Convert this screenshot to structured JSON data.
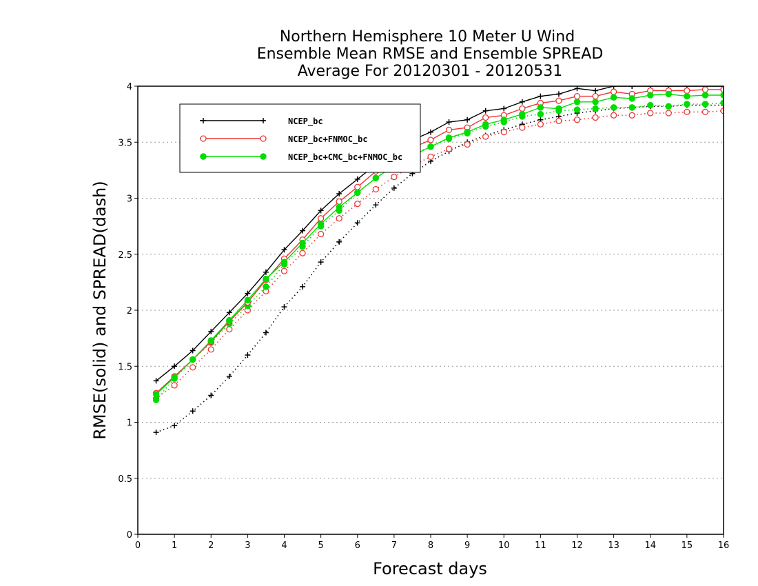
{
  "chart_data": {
    "type": "line",
    "title_lines": [
      "Northern Hemisphere 10 Meter U Wind",
      "Ensemble Mean RMSE and Ensemble SPREAD",
      "Average For 20120301 - 20120531"
    ],
    "xlabel": "Forecast days",
    "ylabel": "RMSE(solid) and SPREAD(dash)",
    "xlim": [
      0,
      16
    ],
    "ylim": [
      0,
      4
    ],
    "xticks": [
      "0",
      "1",
      "2",
      "3",
      "4",
      "5",
      "6",
      "7",
      "8",
      "9",
      "10",
      "11",
      "12",
      "13",
      "14",
      "15",
      "16"
    ],
    "yticks": [
      "0",
      "0.5",
      "1",
      "1.5",
      "2",
      "2.5",
      "3",
      "3.5",
      "4"
    ],
    "grid": "horizontal-dotted",
    "legend_position": "top-left",
    "x": [
      0.5,
      1,
      1.5,
      2,
      2.5,
      3,
      3.5,
      4,
      4.5,
      5,
      5.5,
      6,
      6.5,
      7,
      7.5,
      8,
      8.5,
      9,
      9.5,
      10,
      10.5,
      11,
      11.5,
      12,
      12.5,
      13,
      13.5,
      14,
      14.5,
      15,
      15.5,
      16
    ],
    "series": [
      {
        "name": "NCEP_bc",
        "color": "#000000",
        "marker": "plus",
        "rmse": [
          1.37,
          1.5,
          1.64,
          1.81,
          1.98,
          2.15,
          2.34,
          2.54,
          2.71,
          2.89,
          3.04,
          3.17,
          3.3,
          3.42,
          3.52,
          3.59,
          3.68,
          3.7,
          3.78,
          3.8,
          3.86,
          3.91,
          3.93,
          3.98,
          3.96,
          4.0,
          4.0,
          4.0,
          4.0,
          4.0,
          4.0,
          4.0
        ],
        "spread": [
          0.91,
          0.97,
          1.1,
          1.24,
          1.41,
          1.6,
          1.8,
          2.03,
          2.21,
          2.43,
          2.61,
          2.78,
          2.94,
          3.09,
          3.22,
          3.33,
          3.42,
          3.5,
          3.56,
          3.61,
          3.66,
          3.7,
          3.73,
          3.76,
          3.78,
          3.8,
          3.81,
          3.82,
          3.82,
          3.83,
          3.83,
          3.83
        ]
      },
      {
        "name": "NCEP_bc+FNMOC_bc",
        "color": "#ee3333",
        "marker": "open-circle",
        "rmse": [
          1.26,
          1.41,
          1.56,
          1.72,
          1.9,
          2.07,
          2.27,
          2.46,
          2.63,
          2.82,
          2.97,
          3.1,
          3.24,
          3.35,
          3.45,
          3.52,
          3.61,
          3.63,
          3.72,
          3.74,
          3.8,
          3.85,
          3.87,
          3.91,
          3.91,
          3.95,
          3.93,
          3.96,
          3.96,
          3.96,
          3.97,
          3.97
        ],
        "spread": [
          1.21,
          1.33,
          1.49,
          1.65,
          1.83,
          2.0,
          2.17,
          2.35,
          2.51,
          2.68,
          2.82,
          2.95,
          3.08,
          3.19,
          3.29,
          3.37,
          3.44,
          3.48,
          3.55,
          3.59,
          3.63,
          3.66,
          3.69,
          3.7,
          3.72,
          3.74,
          3.74,
          3.76,
          3.76,
          3.77,
          3.77,
          3.78
        ]
      },
      {
        "name": "NCEP_bc+CMC_bc+FNMOC_bc",
        "color": "#00dd00",
        "marker": "filled-circle",
        "rmse": [
          1.25,
          1.4,
          1.56,
          1.73,
          1.91,
          2.09,
          2.28,
          2.43,
          2.6,
          2.77,
          2.92,
          3.05,
          3.18,
          3.29,
          3.38,
          3.46,
          3.54,
          3.59,
          3.66,
          3.7,
          3.75,
          3.81,
          3.8,
          3.86,
          3.86,
          3.9,
          3.89,
          3.92,
          3.93,
          3.91,
          3.92,
          3.92
        ],
        "spread": [
          1.2,
          1.39,
          1.56,
          1.71,
          1.88,
          2.04,
          2.21,
          2.41,
          2.57,
          2.75,
          2.89,
          3.05,
          3.18,
          3.3,
          3.39,
          3.46,
          3.53,
          3.58,
          3.64,
          3.68,
          3.73,
          3.75,
          3.78,
          3.79,
          3.8,
          3.81,
          3.81,
          3.83,
          3.82,
          3.84,
          3.84,
          3.85
        ]
      }
    ]
  }
}
